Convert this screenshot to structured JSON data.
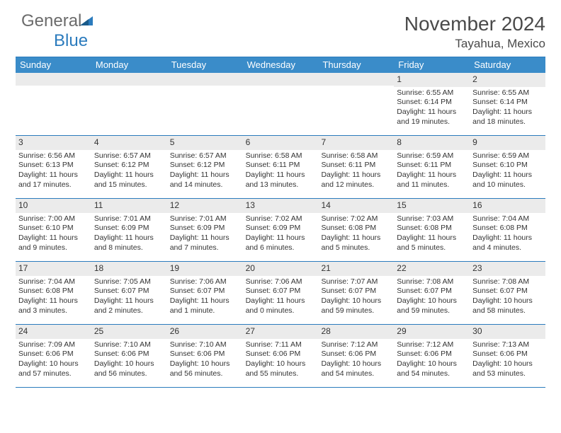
{
  "brand": {
    "left": "General",
    "right": "Blue"
  },
  "title": "November 2024",
  "location": "Tayahua, Mexico",
  "colors": {
    "header_bar": "#3a8cc9",
    "rule": "#2b7bbd",
    "daynum_bg": "#ebebeb",
    "text": "#333333",
    "bg": "#ffffff"
  },
  "days_of_week": [
    "Sunday",
    "Monday",
    "Tuesday",
    "Wednesday",
    "Thursday",
    "Friday",
    "Saturday"
  ],
  "weeks": [
    [
      {
        "n": "",
        "lines": []
      },
      {
        "n": "",
        "lines": []
      },
      {
        "n": "",
        "lines": []
      },
      {
        "n": "",
        "lines": []
      },
      {
        "n": "",
        "lines": []
      },
      {
        "n": "1",
        "lines": [
          "Sunrise: 6:55 AM",
          "Sunset: 6:14 PM",
          "Daylight: 11 hours and 19 minutes."
        ]
      },
      {
        "n": "2",
        "lines": [
          "Sunrise: 6:55 AM",
          "Sunset: 6:14 PM",
          "Daylight: 11 hours and 18 minutes."
        ]
      }
    ],
    [
      {
        "n": "3",
        "lines": [
          "Sunrise: 6:56 AM",
          "Sunset: 6:13 PM",
          "Daylight: 11 hours and 17 minutes."
        ]
      },
      {
        "n": "4",
        "lines": [
          "Sunrise: 6:57 AM",
          "Sunset: 6:12 PM",
          "Daylight: 11 hours and 15 minutes."
        ]
      },
      {
        "n": "5",
        "lines": [
          "Sunrise: 6:57 AM",
          "Sunset: 6:12 PM",
          "Daylight: 11 hours and 14 minutes."
        ]
      },
      {
        "n": "6",
        "lines": [
          "Sunrise: 6:58 AM",
          "Sunset: 6:11 PM",
          "Daylight: 11 hours and 13 minutes."
        ]
      },
      {
        "n": "7",
        "lines": [
          "Sunrise: 6:58 AM",
          "Sunset: 6:11 PM",
          "Daylight: 11 hours and 12 minutes."
        ]
      },
      {
        "n": "8",
        "lines": [
          "Sunrise: 6:59 AM",
          "Sunset: 6:11 PM",
          "Daylight: 11 hours and 11 minutes."
        ]
      },
      {
        "n": "9",
        "lines": [
          "Sunrise: 6:59 AM",
          "Sunset: 6:10 PM",
          "Daylight: 11 hours and 10 minutes."
        ]
      }
    ],
    [
      {
        "n": "10",
        "lines": [
          "Sunrise: 7:00 AM",
          "Sunset: 6:10 PM",
          "Daylight: 11 hours and 9 minutes."
        ]
      },
      {
        "n": "11",
        "lines": [
          "Sunrise: 7:01 AM",
          "Sunset: 6:09 PM",
          "Daylight: 11 hours and 8 minutes."
        ]
      },
      {
        "n": "12",
        "lines": [
          "Sunrise: 7:01 AM",
          "Sunset: 6:09 PM",
          "Daylight: 11 hours and 7 minutes."
        ]
      },
      {
        "n": "13",
        "lines": [
          "Sunrise: 7:02 AM",
          "Sunset: 6:09 PM",
          "Daylight: 11 hours and 6 minutes."
        ]
      },
      {
        "n": "14",
        "lines": [
          "Sunrise: 7:02 AM",
          "Sunset: 6:08 PM",
          "Daylight: 11 hours and 5 minutes."
        ]
      },
      {
        "n": "15",
        "lines": [
          "Sunrise: 7:03 AM",
          "Sunset: 6:08 PM",
          "Daylight: 11 hours and 5 minutes."
        ]
      },
      {
        "n": "16",
        "lines": [
          "Sunrise: 7:04 AM",
          "Sunset: 6:08 PM",
          "Daylight: 11 hours and 4 minutes."
        ]
      }
    ],
    [
      {
        "n": "17",
        "lines": [
          "Sunrise: 7:04 AM",
          "Sunset: 6:08 PM",
          "Daylight: 11 hours and 3 minutes."
        ]
      },
      {
        "n": "18",
        "lines": [
          "Sunrise: 7:05 AM",
          "Sunset: 6:07 PM",
          "Daylight: 11 hours and 2 minutes."
        ]
      },
      {
        "n": "19",
        "lines": [
          "Sunrise: 7:06 AM",
          "Sunset: 6:07 PM",
          "Daylight: 11 hours and 1 minute."
        ]
      },
      {
        "n": "20",
        "lines": [
          "Sunrise: 7:06 AM",
          "Sunset: 6:07 PM",
          "Daylight: 11 hours and 0 minutes."
        ]
      },
      {
        "n": "21",
        "lines": [
          "Sunrise: 7:07 AM",
          "Sunset: 6:07 PM",
          "Daylight: 10 hours and 59 minutes."
        ]
      },
      {
        "n": "22",
        "lines": [
          "Sunrise: 7:08 AM",
          "Sunset: 6:07 PM",
          "Daylight: 10 hours and 59 minutes."
        ]
      },
      {
        "n": "23",
        "lines": [
          "Sunrise: 7:08 AM",
          "Sunset: 6:07 PM",
          "Daylight: 10 hours and 58 minutes."
        ]
      }
    ],
    [
      {
        "n": "24",
        "lines": [
          "Sunrise: 7:09 AM",
          "Sunset: 6:06 PM",
          "Daylight: 10 hours and 57 minutes."
        ]
      },
      {
        "n": "25",
        "lines": [
          "Sunrise: 7:10 AM",
          "Sunset: 6:06 PM",
          "Daylight: 10 hours and 56 minutes."
        ]
      },
      {
        "n": "26",
        "lines": [
          "Sunrise: 7:10 AM",
          "Sunset: 6:06 PM",
          "Daylight: 10 hours and 56 minutes."
        ]
      },
      {
        "n": "27",
        "lines": [
          "Sunrise: 7:11 AM",
          "Sunset: 6:06 PM",
          "Daylight: 10 hours and 55 minutes."
        ]
      },
      {
        "n": "28",
        "lines": [
          "Sunrise: 7:12 AM",
          "Sunset: 6:06 PM",
          "Daylight: 10 hours and 54 minutes."
        ]
      },
      {
        "n": "29",
        "lines": [
          "Sunrise: 7:12 AM",
          "Sunset: 6:06 PM",
          "Daylight: 10 hours and 54 minutes."
        ]
      },
      {
        "n": "30",
        "lines": [
          "Sunrise: 7:13 AM",
          "Sunset: 6:06 PM",
          "Daylight: 10 hours and 53 minutes."
        ]
      }
    ]
  ]
}
